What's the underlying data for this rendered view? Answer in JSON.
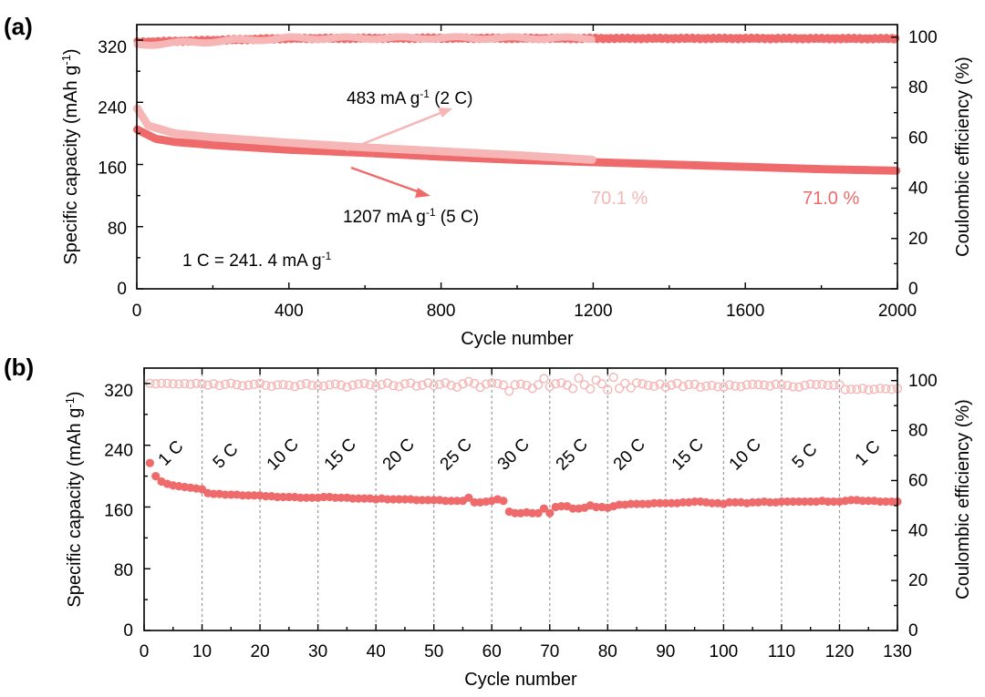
{
  "colors": {
    "dark_series": "#ef6b6b",
    "light_series": "#f6b6b6",
    "grid": "#9a9a9a"
  },
  "panels": {
    "a": {
      "label": "(a)",
      "xlabel": "Cycle number",
      "ylabel_left_main": "Specific capacity (mAh g",
      "ylabel_left_sup": "-1",
      "ylabel_left_end": ")",
      "ylabel_right": "Coulombic efficiency (%)",
      "x_ticks": [
        "0",
        "400",
        "800",
        "1200",
        "1600",
        "2000"
      ],
      "y_left_ticks": [
        "0",
        "80",
        "160",
        "240",
        "320"
      ],
      "y_right_ticks": [
        "0",
        "20",
        "40",
        "60",
        "80",
        "100"
      ],
      "annotation_2c": {
        "main": "483 mA g",
        "sup": "-1",
        "end": " (2 C)"
      },
      "annotation_5c": {
        "main": "1207 mA g",
        "sup": "-1",
        "end": " (5 C)"
      },
      "annotation_1c": {
        "main": "1 C = 241. 4 mA g",
        "sup": "-1"
      },
      "retention_2c": "70.1 %",
      "retention_5c": "71.0 %"
    },
    "b": {
      "label": "(b)",
      "xlabel": "Cycle number",
      "ylabel_left_main": "Specific capacity (mAh g",
      "ylabel_left_sup": "-1",
      "ylabel_left_end": ")",
      "ylabel_right": "Coulombic efficiency (%)",
      "x_ticks": [
        "0",
        "10",
        "20",
        "30",
        "40",
        "50",
        "60",
        "70",
        "80",
        "90",
        "100",
        "110",
        "120",
        "130"
      ],
      "y_left_ticks": [
        "0",
        "80",
        "160",
        "240",
        "320"
      ],
      "y_right_ticks": [
        "0",
        "20",
        "40",
        "60",
        "80",
        "100"
      ],
      "rate_labels": [
        "1 C",
        "5 C",
        "10 C",
        "15 C",
        "20 C",
        "25 C",
        "30 C",
        "25 C",
        "20 C",
        "15 C",
        "10 C",
        "5 C",
        "1 C"
      ]
    }
  },
  "chart_data": [
    {
      "type": "scatter",
      "panel": "a",
      "x_range": [
        0,
        2000
      ],
      "ylim_left": [
        0,
        340
      ],
      "ylim_right": [
        0,
        105
      ],
      "series": [
        {
          "name": "1207 mA g-1 (5 C)",
          "axis": "left",
          "color": "#ef6b6b",
          "points": [
            [
              1,
              205
            ],
            [
              50,
              193
            ],
            [
              100,
              189
            ],
            [
              200,
              185
            ],
            [
              400,
              179
            ],
            [
              600,
              175
            ],
            [
              800,
              170
            ],
            [
              1000,
              166
            ],
            [
              1200,
              163
            ],
            [
              1400,
              160
            ],
            [
              1600,
              157
            ],
            [
              1800,
              154
            ],
            [
              2000,
              152
            ]
          ]
        },
        {
          "name": "483 mA g-1 (2 C)",
          "axis": "left",
          "color": "#f6b6b6",
          "points": [
            [
              1,
              232
            ],
            [
              30,
              210
            ],
            [
              100,
              200
            ],
            [
              200,
              195
            ],
            [
              400,
              188
            ],
            [
              600,
              182
            ],
            [
              800,
              177
            ],
            [
              1000,
              172
            ],
            [
              1200,
              166
            ]
          ]
        },
        {
          "name": "CE 5 C",
          "axis": "right",
          "color": "#ef6b6b",
          "points": [
            [
              1,
              98
            ],
            [
              400,
              99.5
            ],
            [
              800,
              99.6
            ],
            [
              1200,
              99.5
            ],
            [
              1600,
              99.5
            ],
            [
              2000,
              99.4
            ]
          ]
        },
        {
          "name": "CE 2 C",
          "axis": "right",
          "color": "#f6b6b6",
          "points": [
            [
              1,
              97
            ],
            [
              400,
              99.6
            ],
            [
              800,
              99.7
            ],
            [
              1200,
              99.6
            ]
          ]
        }
      ],
      "retention": {
        "2C": "70.1 %",
        "5C": "71.0 %"
      }
    },
    {
      "type": "scatter",
      "panel": "b",
      "x_range": [
        0,
        130
      ],
      "ylim_left": [
        0,
        340
      ],
      "ylim_right": [
        0,
        105
      ],
      "segment_boundaries": [
        10,
        20,
        30,
        40,
        50,
        60,
        70,
        80,
        90,
        100,
        110,
        120
      ],
      "segment_rates": [
        "1 C",
        "5 C",
        "10 C",
        "15 C",
        "20 C",
        "25 C",
        "30 C",
        "25 C",
        "20 C",
        "15 C",
        "10 C",
        "5 C",
        "1 C"
      ],
      "segment_capacity": [
        [
          217,
          200,
          193,
          190,
          188,
          187,
          186,
          185,
          184,
          183
        ],
        [
          178,
          177,
          177,
          176,
          176,
          176,
          175,
          175,
          175,
          175
        ],
        [
          174,
          174,
          173,
          173,
          173,
          173,
          172,
          172,
          172,
          172
        ],
        [
          173,
          173,
          172,
          172,
          172,
          171,
          171,
          171,
          171,
          170
        ],
        [
          171,
          170,
          170,
          170,
          170,
          170,
          169,
          169,
          169,
          169
        ],
        [
          169,
          168,
          168,
          168,
          168,
          172,
          166,
          166,
          167,
          168
        ],
        [
          170,
          168,
          154,
          152,
          152,
          153,
          152,
          152,
          158,
          152
        ],
        [
          160,
          161,
          161,
          158,
          158,
          159,
          162,
          160,
          160,
          159
        ],
        [
          161,
          163,
          163,
          164,
          164,
          164,
          164,
          165,
          165,
          165
        ],
        [
          165,
          165,
          166,
          166,
          167,
          167,
          166,
          165,
          165,
          164
        ],
        [
          166,
          166,
          166,
          165,
          166,
          166,
          167,
          166,
          166,
          167
        ],
        [
          167,
          167,
          167,
          167,
          167,
          167,
          168,
          167,
          167,
          167
        ],
        [
          168,
          169,
          169,
          168,
          168,
          168,
          167,
          167,
          167,
          167
        ]
      ],
      "coulombic_efficiency": [
        [
          98.9,
          98.7,
          98.9,
          98.9,
          98.7,
          98.6,
          98.8,
          98.5,
          98.9,
          98.6
        ],
        [
          98.2,
          98.7,
          98.0,
          98.5,
          98.9,
          98.4,
          97.9,
          98.2,
          98.5,
          98.9
        ],
        [
          98.1,
          97.7,
          98.3,
          98.4,
          98.1,
          97.6,
          98.3,
          98.8,
          98.1,
          98.0
        ],
        [
          97.8,
          98.3,
          98.6,
          98.2,
          97.4,
          98.2,
          98.6,
          98.9,
          98.3,
          97.7
        ],
        [
          98.4,
          99.0,
          98.0,
          97.6,
          98.7,
          99.0,
          97.8,
          98.2,
          99.1,
          98.0
        ],
        [
          98.5,
          99.1,
          98.1,
          97.4,
          98.7,
          99.6,
          98.8,
          97.3,
          98.6,
          99.1
        ],
        [
          98.8,
          98.2,
          95.8,
          98.3,
          98.6,
          98.1,
          96.9,
          98.3,
          100.8,
          97.6
        ],
        [
          98.7,
          99.1,
          98.2,
          96.8,
          101.0,
          98.3,
          96.7,
          100.2,
          98.7,
          96.3
        ],
        [
          101.3,
          96.9,
          98.9,
          97.1,
          99.1,
          98.7,
          98.1,
          97.7,
          98.6,
          97.4
        ],
        [
          98.2,
          98.9,
          97.6,
          98.4,
          98.5,
          97.4,
          97.8,
          98.1,
          97.5,
          97.4
        ],
        [
          98.3,
          97.8,
          97.6,
          98.3,
          98.5,
          98.4,
          98.2,
          97.8,
          98.5,
          98.3
        ],
        [
          98.1,
          97.5,
          97.4,
          98.1,
          98.6,
          98.4,
          98.5,
          98.1,
          98.2,
          98.3
        ],
        [
          96.4,
          96.5,
          96.5,
          96.9,
          96.3,
          96.5,
          96.9,
          96.7,
          96.5,
          96.8
        ]
      ]
    }
  ]
}
